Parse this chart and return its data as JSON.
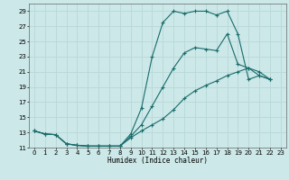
{
  "xlabel": "Humidex (Indice chaleur)",
  "bg_color": "#cce8e8",
  "grid_color": "#b8d8d8",
  "line_color": "#1a6b6b",
  "xlim": [
    -0.5,
    23.5
  ],
  "ylim": [
    11,
    30
  ],
  "xticks": [
    0,
    1,
    2,
    3,
    4,
    5,
    6,
    7,
    8,
    9,
    10,
    11,
    12,
    13,
    14,
    15,
    16,
    17,
    18,
    19,
    20,
    21,
    22,
    23
  ],
  "yticks": [
    11,
    13,
    15,
    17,
    19,
    21,
    23,
    25,
    27,
    29
  ],
  "line1_x": [
    0,
    1,
    2,
    3,
    4,
    5,
    6,
    7,
    8,
    9,
    10,
    11,
    12,
    13,
    14,
    15,
    16,
    17,
    18,
    19,
    20,
    21,
    22
  ],
  "line1_y": [
    13.2,
    12.8,
    12.7,
    11.5,
    11.3,
    11.2,
    11.2,
    11.2,
    11.2,
    12.8,
    16.2,
    23.0,
    27.5,
    29.0,
    28.7,
    29.0,
    29.0,
    28.5,
    29.0,
    26.0,
    20.0,
    20.5,
    20.0
  ],
  "line2_x": [
    0,
    1,
    2,
    3,
    4,
    5,
    6,
    7,
    8,
    9,
    10,
    11,
    12,
    13,
    14,
    15,
    16,
    17,
    18,
    19,
    20,
    21,
    22
  ],
  "line2_y": [
    13.2,
    12.8,
    12.7,
    11.5,
    11.3,
    11.2,
    11.2,
    11.2,
    11.2,
    12.5,
    14.0,
    16.5,
    19.0,
    21.5,
    23.5,
    24.2,
    24.0,
    23.8,
    26.0,
    22.0,
    21.5,
    20.5,
    20.0
  ],
  "line3_x": [
    0,
    1,
    2,
    3,
    4,
    5,
    6,
    7,
    8,
    9,
    10,
    11,
    12,
    13,
    14,
    15,
    16,
    17,
    18,
    19,
    20,
    21,
    22
  ],
  "line3_y": [
    13.2,
    12.8,
    12.7,
    11.5,
    11.3,
    11.2,
    11.2,
    11.2,
    11.2,
    12.3,
    13.2,
    14.0,
    14.8,
    16.0,
    17.5,
    18.5,
    19.2,
    19.8,
    20.5,
    21.0,
    21.5,
    21.0,
    20.0
  ]
}
